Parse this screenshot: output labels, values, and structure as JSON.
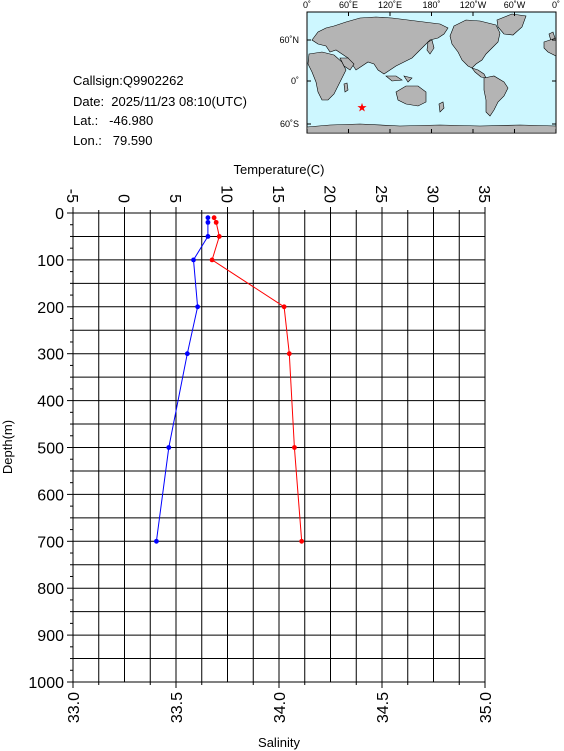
{
  "station": {
    "callsign_line": "Callsign:Q9902262",
    "date_line": "Date:  2025/11/23 08:10(UTC)",
    "lat_line": "Lat.:   -46.980",
    "lon_line": "Lon.:   79.590"
  },
  "map": {
    "lon_ticks": [
      "0˚",
      "60˚E",
      "120˚E",
      "180˚",
      "120˚W",
      "60˚W",
      "0˚"
    ],
    "lat_ticks": [
      "60˚N",
      "0˚",
      "60˚S"
    ],
    "ocean_color": "#cdf7ff",
    "land_color": "#b4b4b4",
    "marker": {
      "lon": 79.59,
      "lat": -46.98,
      "color": "#ff0000"
    }
  },
  "chart_data": {
    "type": "line",
    "temp_axis": {
      "label": "Temperature(C)",
      "range": [
        -5,
        35
      ],
      "ticks": [
        "-5",
        "0",
        "5",
        "10",
        "15",
        "20",
        "25",
        "30",
        "35"
      ]
    },
    "sal_axis": {
      "label": "Salinity",
      "range": [
        33.0,
        35.0
      ],
      "ticks": [
        "33.0",
        "33.5",
        "34.0",
        "34.5",
        "35.0"
      ]
    },
    "depth_axis": {
      "label": "Depth(m)",
      "range": [
        0,
        1000
      ],
      "ticks": [
        "0",
        "100",
        "200",
        "300",
        "400",
        "500",
        "600",
        "700",
        "800",
        "900",
        "1000"
      ]
    },
    "grid": true,
    "series": [
      {
        "color": "#ff0000",
        "axis": "temperature",
        "points": [
          {
            "depth": 10,
            "value": 8.7
          },
          {
            "depth": 20,
            "value": 8.9
          },
          {
            "depth": 50,
            "value": 9.2
          },
          {
            "depth": 100,
            "value": 8.5
          },
          {
            "depth": 200,
            "value": 15.5
          },
          {
            "depth": 300,
            "value": 16.0
          },
          {
            "depth": 500,
            "value": 16.5
          },
          {
            "depth": 700,
            "value": 17.2
          }
        ]
      },
      {
        "color": "#0000ff",
        "axis": "salinity",
        "points": [
          {
            "depth": 10,
            "value": 33.655
          },
          {
            "depth": 20,
            "value": 33.655
          },
          {
            "depth": 50,
            "value": 33.655
          },
          {
            "depth": 100,
            "value": 33.585
          },
          {
            "depth": 200,
            "value": 33.605
          },
          {
            "depth": 300,
            "value": 33.555
          },
          {
            "depth": 500,
            "value": 33.465
          },
          {
            "depth": 700,
            "value": 33.405
          }
        ]
      }
    ]
  }
}
